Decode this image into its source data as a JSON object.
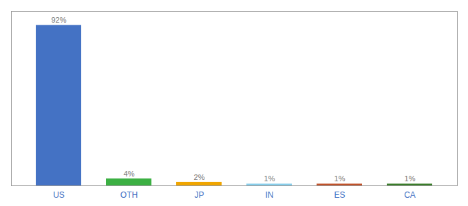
{
  "chart_data": {
    "type": "bar",
    "categories": [
      "US",
      "OTH",
      "JP",
      "IN",
      "ES",
      "CA"
    ],
    "values": [
      92,
      4,
      2,
      1,
      1,
      1
    ],
    "value_labels": [
      "92%",
      "4%",
      "2%",
      "1%",
      "1%",
      "1%"
    ],
    "colors": [
      "#4472c4",
      "#3cb043",
      "#f0a500",
      "#87ceeb",
      "#c0522a",
      "#3a7d2a"
    ],
    "ylim": [
      0,
      100
    ],
    "data_labels": true,
    "tick_labels": "x",
    "grid": false
  }
}
